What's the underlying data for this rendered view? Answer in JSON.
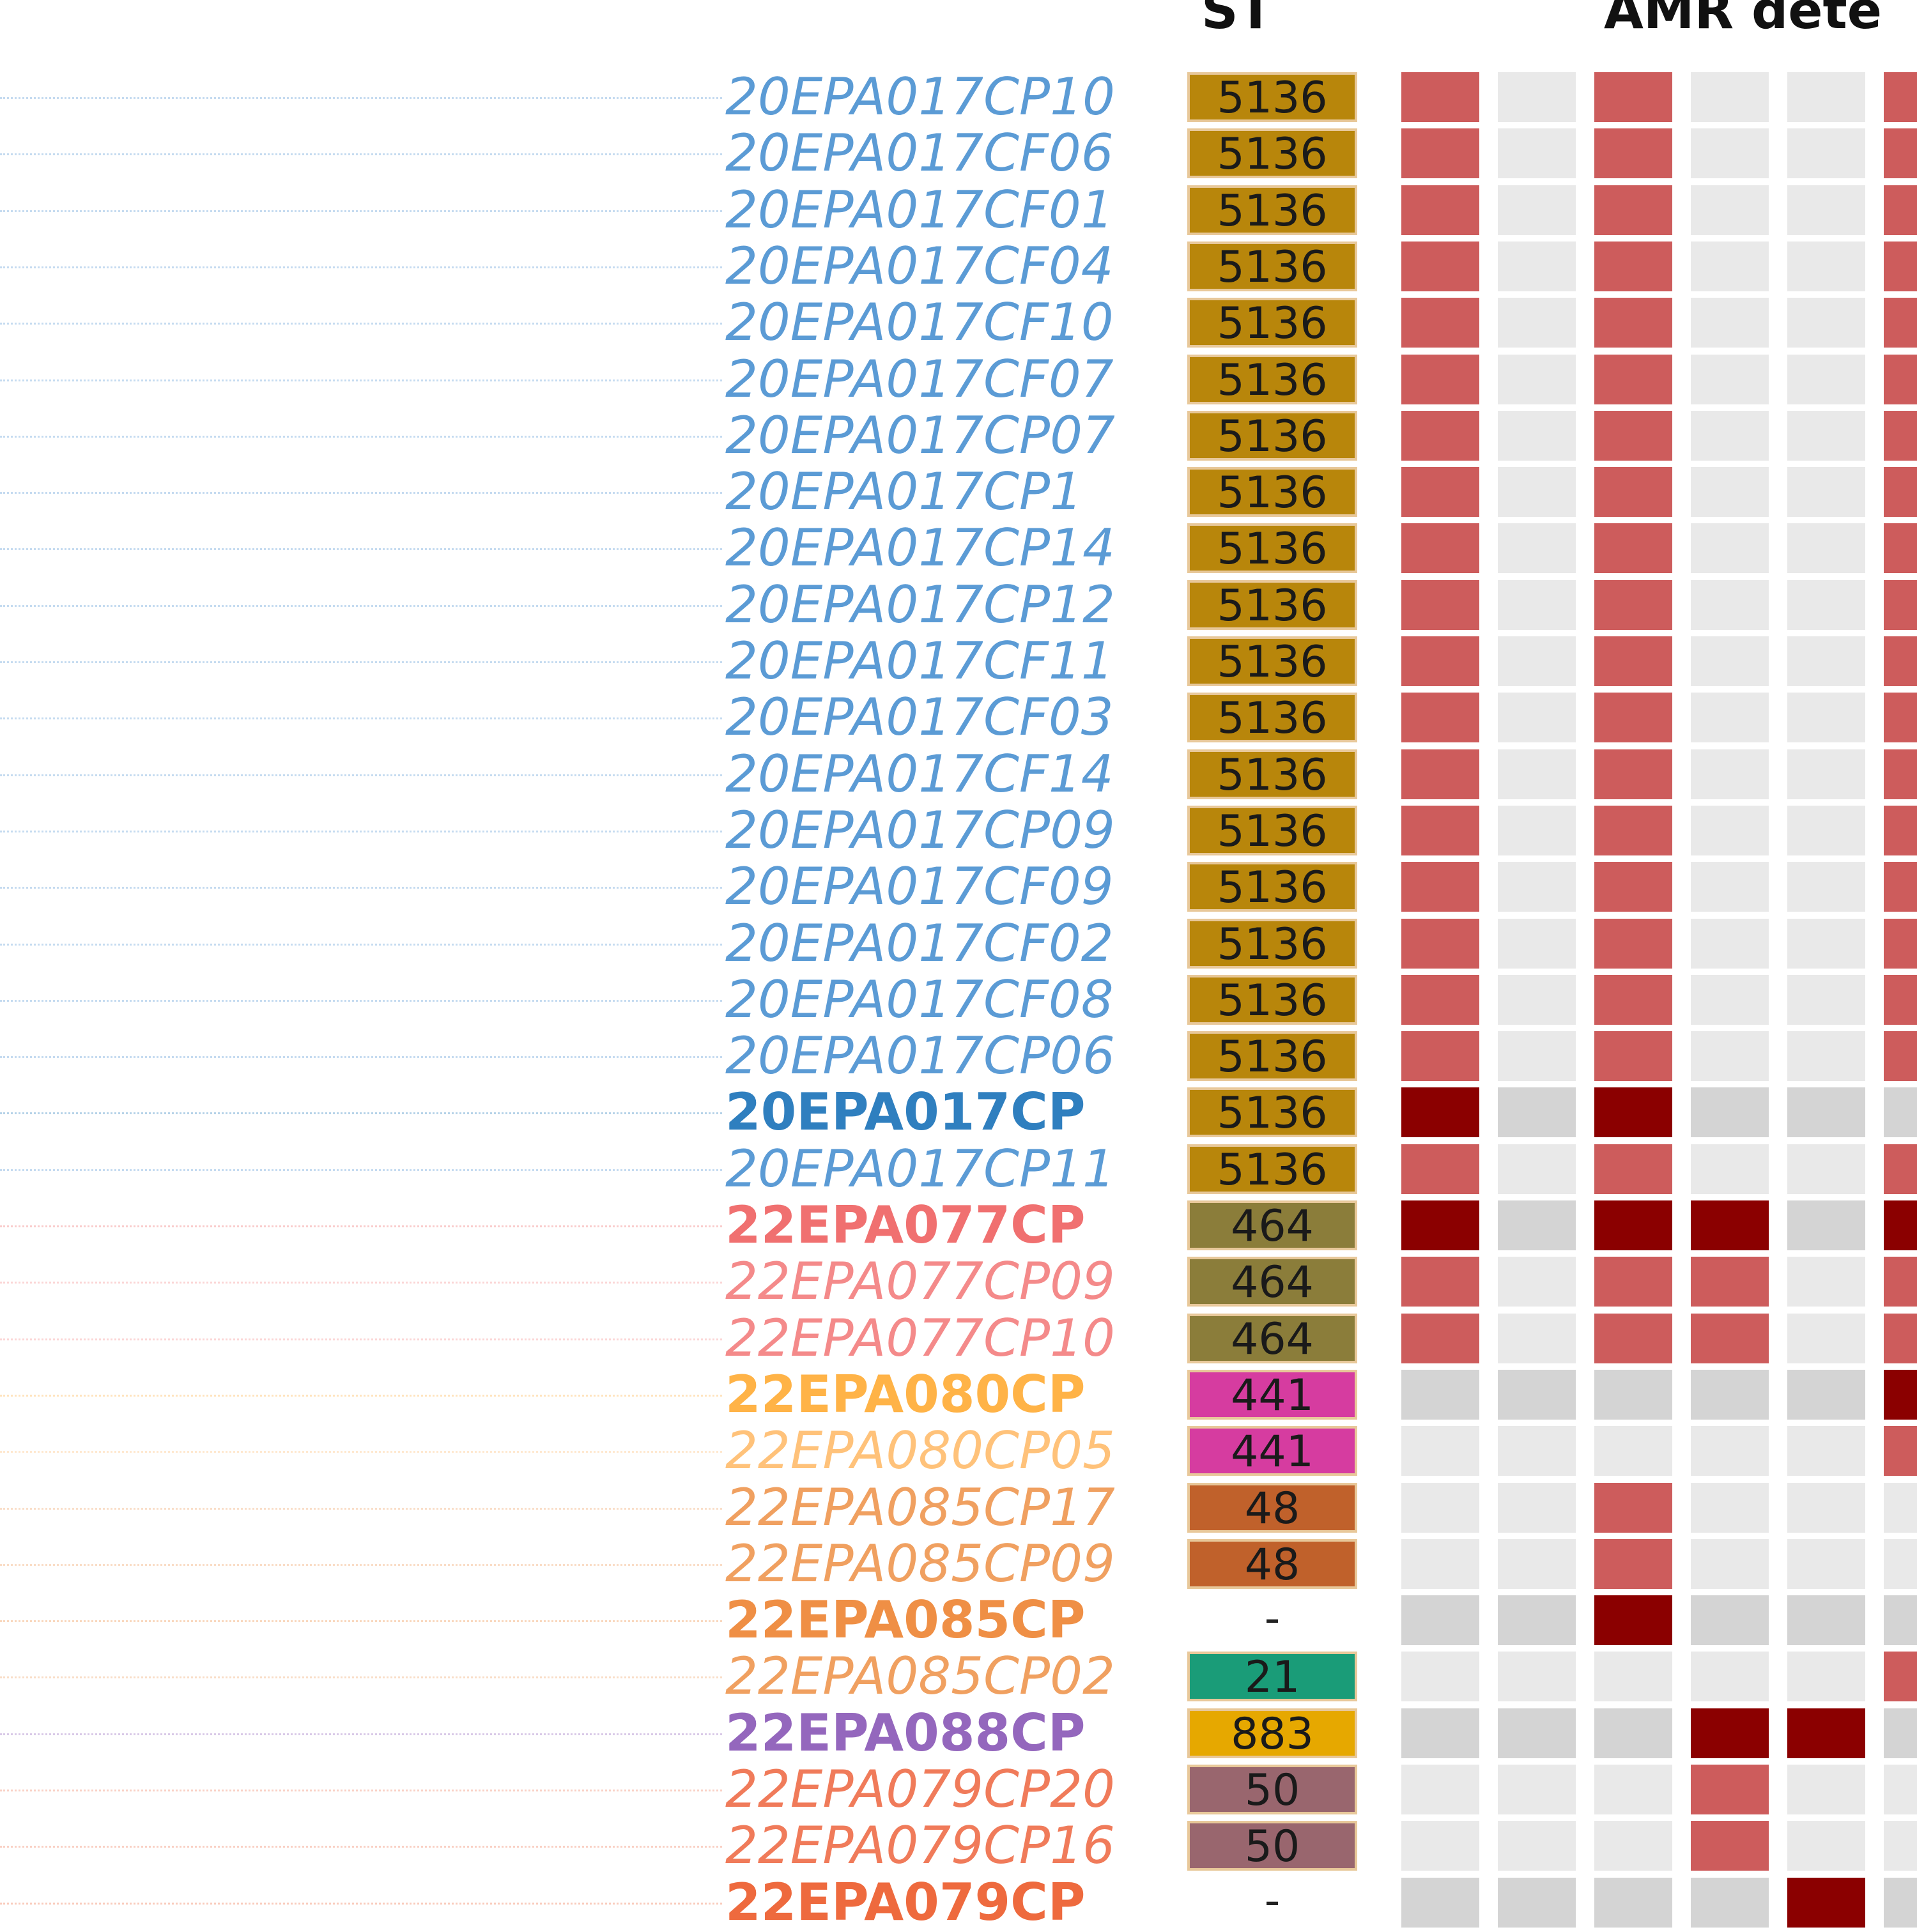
{
  "headers": {
    "st": "ST",
    "amr": "AMR dete"
  },
  "colors": {
    "present": "#cd5c5c",
    "present_ref": "#8b0000",
    "absent": "#e9e9e9",
    "absent_ref": "#d4d4d4",
    "st_5136": "#b8860b",
    "st_464": "#8b7d3a",
    "st_441": "#d63ca0",
    "st_48": "#c0612b",
    "st_21": "#1a9c78",
    "st_883": "#e6a800",
    "st_50": "#99666e"
  },
  "chart_data": {
    "type": "heatmap",
    "title": "",
    "columns": [
      "ST",
      "AMR dete"
    ],
    "amr_gene_count_visible": 6,
    "rows": [
      {
        "label": "20EPA017CP10",
        "color": "#5b9bd5",
        "style": "italic",
        "st": "5136",
        "st_color": "#b8860b",
        "amr": [
          1,
          0,
          1,
          0,
          0,
          1
        ]
      },
      {
        "label": "20EPA017CF06",
        "color": "#5b9bd5",
        "style": "italic",
        "st": "5136",
        "st_color": "#b8860b",
        "amr": [
          1,
          0,
          1,
          0,
          0,
          1
        ]
      },
      {
        "label": "20EPA017CF01",
        "color": "#5b9bd5",
        "style": "italic",
        "st": "5136",
        "st_color": "#b8860b",
        "amr": [
          1,
          0,
          1,
          0,
          0,
          1
        ]
      },
      {
        "label": "20EPA017CF04",
        "color": "#5b9bd5",
        "style": "italic",
        "st": "5136",
        "st_color": "#b8860b",
        "amr": [
          1,
          0,
          1,
          0,
          0,
          1
        ]
      },
      {
        "label": "20EPA017CF10",
        "color": "#5b9bd5",
        "style": "italic",
        "st": "5136",
        "st_color": "#b8860b",
        "amr": [
          1,
          0,
          1,
          0,
          0,
          1
        ]
      },
      {
        "label": "20EPA017CF07",
        "color": "#5b9bd5",
        "style": "italic",
        "st": "5136",
        "st_color": "#b8860b",
        "amr": [
          1,
          0,
          1,
          0,
          0,
          1
        ]
      },
      {
        "label": "20EPA017CP07",
        "color": "#5b9bd5",
        "style": "italic",
        "st": "5136",
        "st_color": "#b8860b",
        "amr": [
          1,
          0,
          1,
          0,
          0,
          1
        ]
      },
      {
        "label": "20EPA017CP1",
        "color": "#5b9bd5",
        "style": "italic",
        "st": "5136",
        "st_color": "#b8860b",
        "amr": [
          1,
          0,
          1,
          0,
          0,
          1
        ]
      },
      {
        "label": "20EPA017CP14",
        "color": "#5b9bd5",
        "style": "italic",
        "st": "5136",
        "st_color": "#b8860b",
        "amr": [
          1,
          0,
          1,
          0,
          0,
          1
        ]
      },
      {
        "label": "20EPA017CP12",
        "color": "#5b9bd5",
        "style": "italic",
        "st": "5136",
        "st_color": "#b8860b",
        "amr": [
          1,
          0,
          1,
          0,
          0,
          1
        ]
      },
      {
        "label": "20EPA017CF11",
        "color": "#5b9bd5",
        "style": "italic",
        "st": "5136",
        "st_color": "#b8860b",
        "amr": [
          1,
          0,
          1,
          0,
          0,
          1
        ]
      },
      {
        "label": "20EPA017CF03",
        "color": "#5b9bd5",
        "style": "italic",
        "st": "5136",
        "st_color": "#b8860b",
        "amr": [
          1,
          0,
          1,
          0,
          0,
          1
        ]
      },
      {
        "label": "20EPA017CF14",
        "color": "#5b9bd5",
        "style": "italic",
        "st": "5136",
        "st_color": "#b8860b",
        "amr": [
          1,
          0,
          1,
          0,
          0,
          1
        ]
      },
      {
        "label": "20EPA017CP09",
        "color": "#5b9bd5",
        "style": "italic",
        "st": "5136",
        "st_color": "#b8860b",
        "amr": [
          1,
          0,
          1,
          0,
          0,
          1
        ]
      },
      {
        "label": "20EPA017CF09",
        "color": "#5b9bd5",
        "style": "italic",
        "st": "5136",
        "st_color": "#b8860b",
        "amr": [
          1,
          0,
          1,
          0,
          0,
          1
        ]
      },
      {
        "label": "20EPA017CF02",
        "color": "#5b9bd5",
        "style": "italic",
        "st": "5136",
        "st_color": "#b8860b",
        "amr": [
          1,
          0,
          1,
          0,
          0,
          1
        ]
      },
      {
        "label": "20EPA017CF08",
        "color": "#5b9bd5",
        "style": "italic",
        "st": "5136",
        "st_color": "#b8860b",
        "amr": [
          1,
          0,
          1,
          0,
          0,
          1
        ]
      },
      {
        "label": "20EPA017CP06",
        "color": "#5b9bd5",
        "style": "italic",
        "st": "5136",
        "st_color": "#b8860b",
        "amr": [
          1,
          0,
          1,
          0,
          0,
          1
        ]
      },
      {
        "label": "20EPA017CP",
        "color": "#2f7fbf",
        "style": "bold",
        "ref": true,
        "st": "5136",
        "st_color": "#b8860b",
        "amr": [
          1,
          0,
          1,
          0,
          0,
          0
        ]
      },
      {
        "label": "20EPA017CP11",
        "color": "#5b9bd5",
        "style": "italic",
        "st": "5136",
        "st_color": "#b8860b",
        "amr": [
          1,
          0,
          1,
          0,
          0,
          1
        ]
      },
      {
        "label": "22EPA077CP",
        "color": "#f07070",
        "style": "bold",
        "ref": true,
        "st": "464",
        "st_color": "#8b7d3a",
        "amr": [
          1,
          0,
          1,
          1,
          0,
          1
        ]
      },
      {
        "label": "22EPA077CP09",
        "color": "#f48a8a",
        "style": "italic",
        "st": "464",
        "st_color": "#8b7d3a",
        "amr": [
          1,
          0,
          1,
          1,
          0,
          1
        ]
      },
      {
        "label": "22EPA077CP10",
        "color": "#f48a8a",
        "style": "italic",
        "st": "464",
        "st_color": "#8b7d3a",
        "amr": [
          1,
          0,
          1,
          1,
          0,
          1
        ]
      },
      {
        "label": "22EPA080CP",
        "color": "#ffb347",
        "style": "bold",
        "ref": true,
        "st": "441",
        "st_color": "#d63ca0",
        "amr": [
          0,
          0,
          0,
          0,
          0,
          1
        ]
      },
      {
        "label": "22EPA080CP05",
        "color": "#ffc27a",
        "style": "italic",
        "st": "441",
        "st_color": "#d63ca0",
        "amr": [
          0,
          0,
          0,
          0,
          0,
          1
        ]
      },
      {
        "label": "22EPA085CP17",
        "color": "#f0a060",
        "style": "italic",
        "st": "48",
        "st_color": "#c0612b",
        "amr": [
          0,
          0,
          1,
          0,
          0,
          0
        ]
      },
      {
        "label": "22EPA085CP09",
        "color": "#f0a060",
        "style": "italic",
        "st": "48",
        "st_color": "#c0612b",
        "amr": [
          0,
          0,
          1,
          0,
          0,
          0
        ]
      },
      {
        "label": "22EPA085CP",
        "color": "#ef8f45",
        "style": "bold",
        "ref": true,
        "st": "-",
        "st_color": "",
        "amr": [
          0,
          0,
          1,
          0,
          0,
          0
        ]
      },
      {
        "label": "22EPA085CP02",
        "color": "#f0a060",
        "style": "italic",
        "st": "21",
        "st_color": "#1a9c78",
        "amr": [
          0,
          0,
          0,
          0,
          0,
          1
        ]
      },
      {
        "label": "22EPA088CP",
        "color": "#9467bd",
        "style": "bold",
        "ref": true,
        "st": "883",
        "st_color": "#e6a800",
        "amr": [
          0,
          0,
          0,
          1,
          1,
          0
        ]
      },
      {
        "label": "22EPA079CP20",
        "color": "#f07b5a",
        "style": "italic",
        "st": "50",
        "st_color": "#99666e",
        "amr": [
          0,
          0,
          0,
          1,
          0,
          0
        ]
      },
      {
        "label": "22EPA079CP16",
        "color": "#f07b5a",
        "style": "italic",
        "st": "50",
        "st_color": "#99666e",
        "amr": [
          0,
          0,
          0,
          1,
          0,
          0
        ]
      },
      {
        "label": "22EPA079CP",
        "color": "#ee6a3e",
        "style": "bold",
        "ref": true,
        "st": "-",
        "st_color": "",
        "amr": [
          0,
          0,
          0,
          0,
          1,
          0
        ]
      }
    ]
  }
}
